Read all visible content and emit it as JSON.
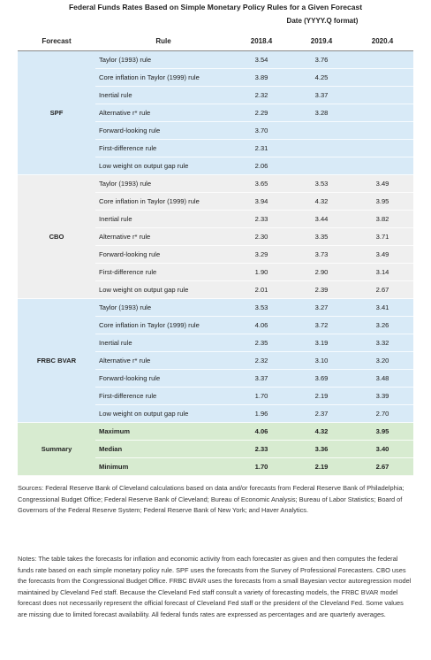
{
  "title": "Federal Funds Rates Based on Simple Monetary Policy Rules for a Given Forecast",
  "date_header": "Date (YYYY.Q format)",
  "columns": [
    "Forecast",
    "Rule",
    "2018.4",
    "2019.4",
    "2020.4"
  ],
  "groups": [
    {
      "forecast": "SPF",
      "rows": [
        {
          "rule": "Taylor (1993) rule",
          "values": [
            "3.54",
            "3.76",
            null
          ]
        },
        {
          "rule": "Core inflation in Taylor (1999) rule",
          "values": [
            "3.89",
            "4.25",
            null
          ]
        },
        {
          "rule": "Inertial rule",
          "values": [
            "2.32",
            "3.37",
            null
          ]
        },
        {
          "rule": "Alternative r* rule",
          "values": [
            "2.29",
            "3.28",
            null
          ]
        },
        {
          "rule": "Forward-looking rule",
          "values": [
            "3.70",
            null,
            null
          ]
        },
        {
          "rule": "First-difference rule",
          "values": [
            "2.31",
            null,
            null
          ]
        },
        {
          "rule": "Low weight on output gap rule",
          "values": [
            "2.06",
            null,
            null
          ]
        }
      ]
    },
    {
      "forecast": "CBO",
      "rows": [
        {
          "rule": "Taylor (1993) rule",
          "values": [
            "3.65",
            "3.53",
            "3.49"
          ]
        },
        {
          "rule": "Core inflation in Taylor (1999) rule",
          "values": [
            "3.94",
            "4.32",
            "3.95"
          ]
        },
        {
          "rule": "Inertial rule",
          "values": [
            "2.33",
            "3.44",
            "3.82"
          ]
        },
        {
          "rule": "Alternative r* rule",
          "values": [
            "2.30",
            "3.35",
            "3.71"
          ]
        },
        {
          "rule": "Forward-looking rule",
          "values": [
            "3.29",
            "3.73",
            "3.49"
          ]
        },
        {
          "rule": "First-difference rule",
          "values": [
            "1.90",
            "2.90",
            "3.14"
          ]
        },
        {
          "rule": "Low weight on output gap rule",
          "values": [
            "2.01",
            "2.39",
            "2.67"
          ]
        }
      ]
    },
    {
      "forecast": "FRBC BVAR",
      "rows": [
        {
          "rule": "Taylor (1993) rule",
          "values": [
            "3.53",
            "3.27",
            "3.41"
          ]
        },
        {
          "rule": "Core inflation in Taylor (1999) rule",
          "values": [
            "4.06",
            "3.72",
            "3.26"
          ]
        },
        {
          "rule": "Inertial rule",
          "values": [
            "2.35",
            "3.19",
            "3.32"
          ]
        },
        {
          "rule": "Alternative r* rule",
          "values": [
            "2.32",
            "3.10",
            "3.20"
          ]
        },
        {
          "rule": "Forward-looking rule",
          "values": [
            "3.37",
            "3.69",
            "3.48"
          ]
        },
        {
          "rule": "First-difference rule",
          "values": [
            "1.70",
            "2.19",
            "3.39"
          ]
        },
        {
          "rule": "Low weight on output gap rule",
          "values": [
            "1.96",
            "2.37",
            "2.70"
          ]
        }
      ]
    },
    {
      "forecast": "Summary",
      "rows": [
        {
          "rule": "Maximum",
          "values": [
            "4.06",
            "4.32",
            "3.95"
          ]
        },
        {
          "rule": "Median",
          "values": [
            "2.33",
            "3.36",
            "3.40"
          ]
        },
        {
          "rule": "Minimum",
          "values": [
            "1.70",
            "2.19",
            "2.67"
          ]
        }
      ]
    }
  ],
  "sources": "Sources: Federal Reserve Bank of Cleveland calculations based on data and/or forecasts from Federal Reserve Bank of Philadelphia; Congressional Budget Office; Federal Reserve Bank of Cleveland; Bureau of Economic Analysis; Bureau of Labor Statistics; Board of Governors of the Federal Reserve System; Federal Reserve Bank of New York; and Haver Analytics.",
  "notes": "Notes: The table takes the forecasts for inflation and economic activity from each forecaster as given and then computes the federal funds rate based on each simple monetary policy rule. SPF uses the forecasts from the Survey of Professional Forecasters. CBO uses the forecasts from the Congressional Budget Office. FRBC BVAR uses the forecasts from a small Bayesian vector autoregression model maintained by Cleveland Fed staff. Because the Cleveland Fed staff consult a variety of forecasting models, the FRBC BVAR model forecast does not necessarily represent the official forecast of Cleveland Fed staff or the president of the Cleveland Fed. Some values are missing due to limited forecast availability. All federal funds rates are expressed as percentages and are quarterly averages."
}
